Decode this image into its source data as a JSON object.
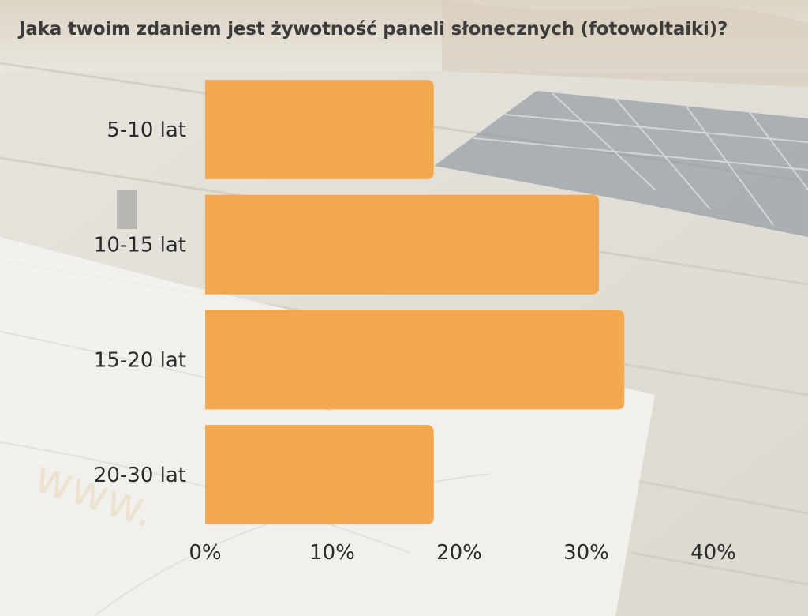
{
  "chart_data": {
    "type": "bar",
    "orientation": "horizontal",
    "title": "Jaka twoim zdaniem jest żywotność paneli słonecznych (fotowoltaiki)?",
    "categories": [
      "5-10 lat",
      "10-15 lat",
      "15-20 lat",
      "20-30 lat"
    ],
    "values": [
      18,
      31,
      33,
      18
    ],
    "xlim": [
      0,
      40
    ],
    "x_ticks": [
      0,
      10,
      20,
      30,
      40
    ],
    "x_tick_labels": [
      "0%",
      "10%",
      "20%",
      "30%",
      "40%"
    ],
    "xlabel": "",
    "ylabel": "",
    "grid": false,
    "bar_color": "#f2a851"
  }
}
